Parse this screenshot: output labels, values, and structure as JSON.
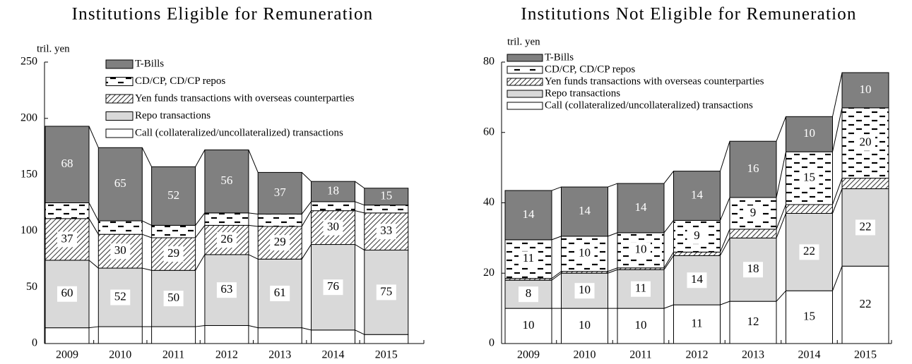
{
  "chart_data": [
    {
      "type": "bar",
      "stacked": true,
      "title": "Institutions Eligible for Remuneration",
      "y_label": "tril. yen",
      "categories": [
        "2009",
        "2010",
        "2011",
        "2012",
        "2013",
        "2014",
        "2015"
      ],
      "ylim": [
        0,
        250
      ],
      "yticks": [
        0,
        50,
        100,
        150,
        200,
        250
      ],
      "legend": "top",
      "series": [
        {
          "name": "Call (collateralized/uncollateralized) transactions",
          "color": "#ffffff",
          "data_labels": false,
          "values": [
            14,
            15,
            15,
            16,
            14,
            12,
            8
          ]
        },
        {
          "name": "Repo transactions",
          "color": "#d9d9d9",
          "data_labels": true,
          "values": [
            60,
            52,
            50,
            63,
            61,
            76,
            75
          ]
        },
        {
          "name": "Yen funds transactions with overseas counterparties",
          "color": "#ffffff",
          "pattern": "hatch",
          "data_labels": true,
          "values": [
            37,
            30,
            29,
            26,
            29,
            30,
            33
          ]
        },
        {
          "name": "CD/CP, CD/CP repos",
          "color": "#ffffff",
          "pattern": "dash",
          "data_labels": false,
          "values": [
            14,
            12,
            11,
            11,
            11,
            8,
            7
          ]
        },
        {
          "name": "T-Bills",
          "color": "#808080",
          "data_labels": true,
          "values": [
            68,
            65,
            52,
            56,
            37,
            18,
            15
          ]
        }
      ]
    },
    {
      "type": "bar",
      "stacked": true,
      "title": "Institutions Not Eligible for Remuneration",
      "y_label": "tril. yen",
      "categories": [
        "2009",
        "2010",
        "2011",
        "2012",
        "2013",
        "2014",
        "2015"
      ],
      "ylim": [
        0,
        80
      ],
      "yticks": [
        0,
        20,
        40,
        60,
        80
      ],
      "legend": "top-left",
      "series": [
        {
          "name": "Call (collateralized/uncollateralized) transactions",
          "color": "#ffffff",
          "data_labels": true,
          "values": [
            10,
            10,
            10,
            11,
            12,
            15,
            22
          ]
        },
        {
          "name": "Repo transactions",
          "color": "#d9d9d9",
          "data_labels": true,
          "values": [
            8,
            10,
            11,
            14,
            18,
            22,
            22
          ]
        },
        {
          "name": "Yen funds transactions with overseas counterparties",
          "color": "#ffffff",
          "pattern": "hatch",
          "data_labels": false,
          "values": [
            0.5,
            0.5,
            0.5,
            1,
            2.5,
            2.5,
            3
          ]
        },
        {
          "name": "CD/CP, CD/CP repos",
          "color": "#ffffff",
          "pattern": "dash",
          "data_labels": true,
          "values": [
            11,
            10,
            10,
            9,
            9,
            15,
            20
          ]
        },
        {
          "name": "T-Bills",
          "color": "#808080",
          "data_labels": true,
          "values": [
            14,
            14,
            14,
            14,
            16,
            10,
            10
          ]
        }
      ]
    }
  ]
}
